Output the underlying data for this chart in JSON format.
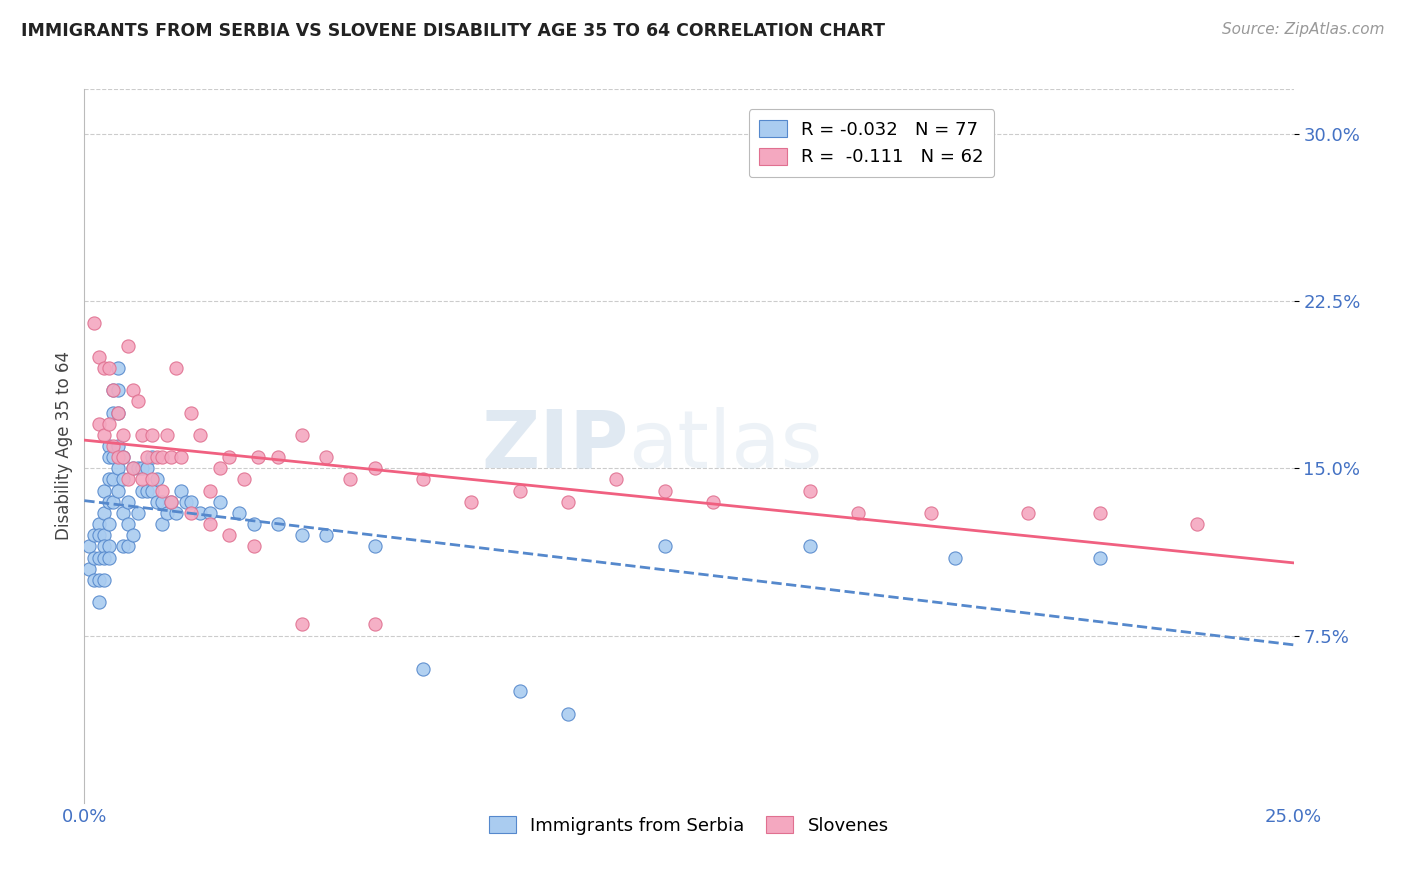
{
  "title": "IMMIGRANTS FROM SERBIA VS SLOVENE DISABILITY AGE 35 TO 64 CORRELATION CHART",
  "source": "Source: ZipAtlas.com",
  "ylabel_label": "Disability Age 35 to 64",
  "xlim": [
    0.0,
    0.25
  ],
  "ylim": [
    0.0,
    0.32
  ],
  "x_tick_pos": [
    0.0,
    0.05,
    0.1,
    0.15,
    0.2,
    0.25
  ],
  "x_tick_labels": [
    "0.0%",
    "",
    "",
    "",
    "",
    "25.0%"
  ],
  "y_tick_pos": [
    0.075,
    0.15,
    0.225,
    0.3
  ],
  "y_tick_labels": [
    "7.5%",
    "15.0%",
    "22.5%",
    "30.0%"
  ],
  "legend_r1": "-0.032",
  "legend_n1": "77",
  "legend_r2": "-0.111",
  "legend_n2": "62",
  "color_serbia": "#aaccf0",
  "color_slovene": "#f4a8c0",
  "color_serbia_line": "#5588cc",
  "color_slovene_line": "#f06080",
  "color_axis": "#4472c4",
  "background_color": "#ffffff",
  "watermark_zip": "ZIP",
  "watermark_atlas": "atlas",
  "serbia_x": [
    0.001,
    0.001,
    0.002,
    0.002,
    0.002,
    0.003,
    0.003,
    0.003,
    0.003,
    0.003,
    0.004,
    0.004,
    0.004,
    0.004,
    0.004,
    0.004,
    0.005,
    0.005,
    0.005,
    0.005,
    0.005,
    0.005,
    0.005,
    0.006,
    0.006,
    0.006,
    0.006,
    0.006,
    0.007,
    0.007,
    0.007,
    0.007,
    0.007,
    0.007,
    0.008,
    0.008,
    0.008,
    0.008,
    0.009,
    0.009,
    0.009,
    0.01,
    0.01,
    0.011,
    0.011,
    0.012,
    0.012,
    0.013,
    0.013,
    0.014,
    0.014,
    0.015,
    0.015,
    0.016,
    0.016,
    0.017,
    0.018,
    0.019,
    0.02,
    0.021,
    0.022,
    0.024,
    0.026,
    0.028,
    0.032,
    0.035,
    0.04,
    0.045,
    0.05,
    0.06,
    0.07,
    0.09,
    0.1,
    0.12,
    0.15,
    0.18,
    0.21
  ],
  "serbia_y": [
    0.115,
    0.105,
    0.12,
    0.11,
    0.1,
    0.125,
    0.12,
    0.11,
    0.1,
    0.09,
    0.14,
    0.13,
    0.12,
    0.115,
    0.11,
    0.1,
    0.16,
    0.155,
    0.145,
    0.135,
    0.125,
    0.115,
    0.11,
    0.185,
    0.175,
    0.155,
    0.145,
    0.135,
    0.195,
    0.185,
    0.175,
    0.16,
    0.15,
    0.14,
    0.155,
    0.145,
    0.13,
    0.115,
    0.135,
    0.125,
    0.115,
    0.15,
    0.12,
    0.15,
    0.13,
    0.15,
    0.14,
    0.15,
    0.14,
    0.155,
    0.14,
    0.145,
    0.135,
    0.135,
    0.125,
    0.13,
    0.135,
    0.13,
    0.14,
    0.135,
    0.135,
    0.13,
    0.13,
    0.135,
    0.13,
    0.125,
    0.125,
    0.12,
    0.12,
    0.115,
    0.06,
    0.05,
    0.04,
    0.115,
    0.115,
    0.11,
    0.11
  ],
  "slovene_x": [
    0.002,
    0.003,
    0.004,
    0.005,
    0.006,
    0.007,
    0.008,
    0.009,
    0.01,
    0.011,
    0.012,
    0.013,
    0.014,
    0.015,
    0.016,
    0.017,
    0.018,
    0.019,
    0.02,
    0.022,
    0.024,
    0.026,
    0.028,
    0.03,
    0.033,
    0.036,
    0.04,
    0.045,
    0.05,
    0.055,
    0.06,
    0.07,
    0.08,
    0.09,
    0.1,
    0.11,
    0.12,
    0.13,
    0.15,
    0.16,
    0.175,
    0.195,
    0.21,
    0.23,
    0.003,
    0.004,
    0.005,
    0.006,
    0.007,
    0.008,
    0.009,
    0.01,
    0.012,
    0.014,
    0.016,
    0.018,
    0.022,
    0.026,
    0.03,
    0.035,
    0.045,
    0.06
  ],
  "slovene_y": [
    0.215,
    0.2,
    0.195,
    0.195,
    0.185,
    0.175,
    0.165,
    0.205,
    0.185,
    0.18,
    0.165,
    0.155,
    0.165,
    0.155,
    0.155,
    0.165,
    0.155,
    0.195,
    0.155,
    0.175,
    0.165,
    0.14,
    0.15,
    0.155,
    0.145,
    0.155,
    0.155,
    0.165,
    0.155,
    0.145,
    0.15,
    0.145,
    0.135,
    0.14,
    0.135,
    0.145,
    0.14,
    0.135,
    0.14,
    0.13,
    0.13,
    0.13,
    0.13,
    0.125,
    0.17,
    0.165,
    0.17,
    0.16,
    0.155,
    0.155,
    0.145,
    0.15,
    0.145,
    0.145,
    0.14,
    0.135,
    0.13,
    0.125,
    0.12,
    0.115,
    0.08,
    0.08
  ]
}
